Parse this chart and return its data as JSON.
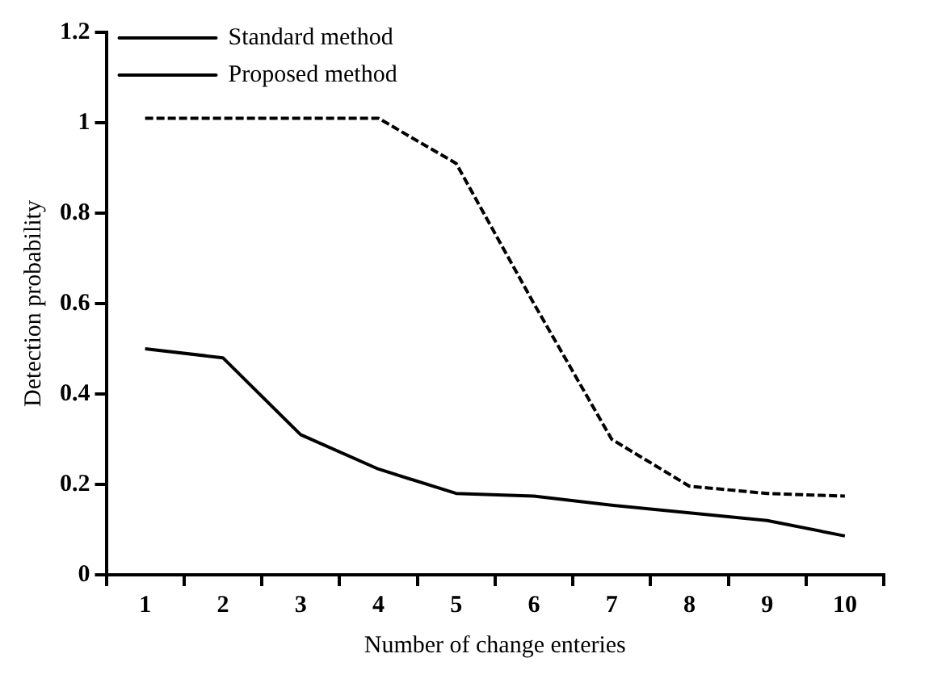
{
  "chart_data": {
    "type": "line",
    "xlabel": "Number of change enteries",
    "ylabel": "Detection probability",
    "categories": [
      "1",
      "2",
      "3",
      "4",
      "5",
      "6",
      "7",
      "8",
      "9",
      "10"
    ],
    "series": [
      {
        "name": "Standard method",
        "color": "#000000",
        "line_style": "solid",
        "values": [
          0.5,
          0.48,
          0.31,
          0.234,
          0.18,
          0.174,
          0.154,
          0.137,
          0.12,
          0.086
        ]
      },
      {
        "name": "Proposed method",
        "color": "#000000",
        "line_style": "dashed",
        "values": [
          1.01,
          1.01,
          1.01,
          1.01,
          0.91,
          0.6,
          0.3,
          0.196,
          0.18,
          0.174
        ]
      }
    ],
    "ylim": [
      0,
      1.2
    ],
    "yticks": [
      0,
      0.2,
      0.4,
      0.6,
      0.8,
      1,
      1.2
    ],
    "grid": false,
    "legend": "top left",
    "marker": "none"
  }
}
